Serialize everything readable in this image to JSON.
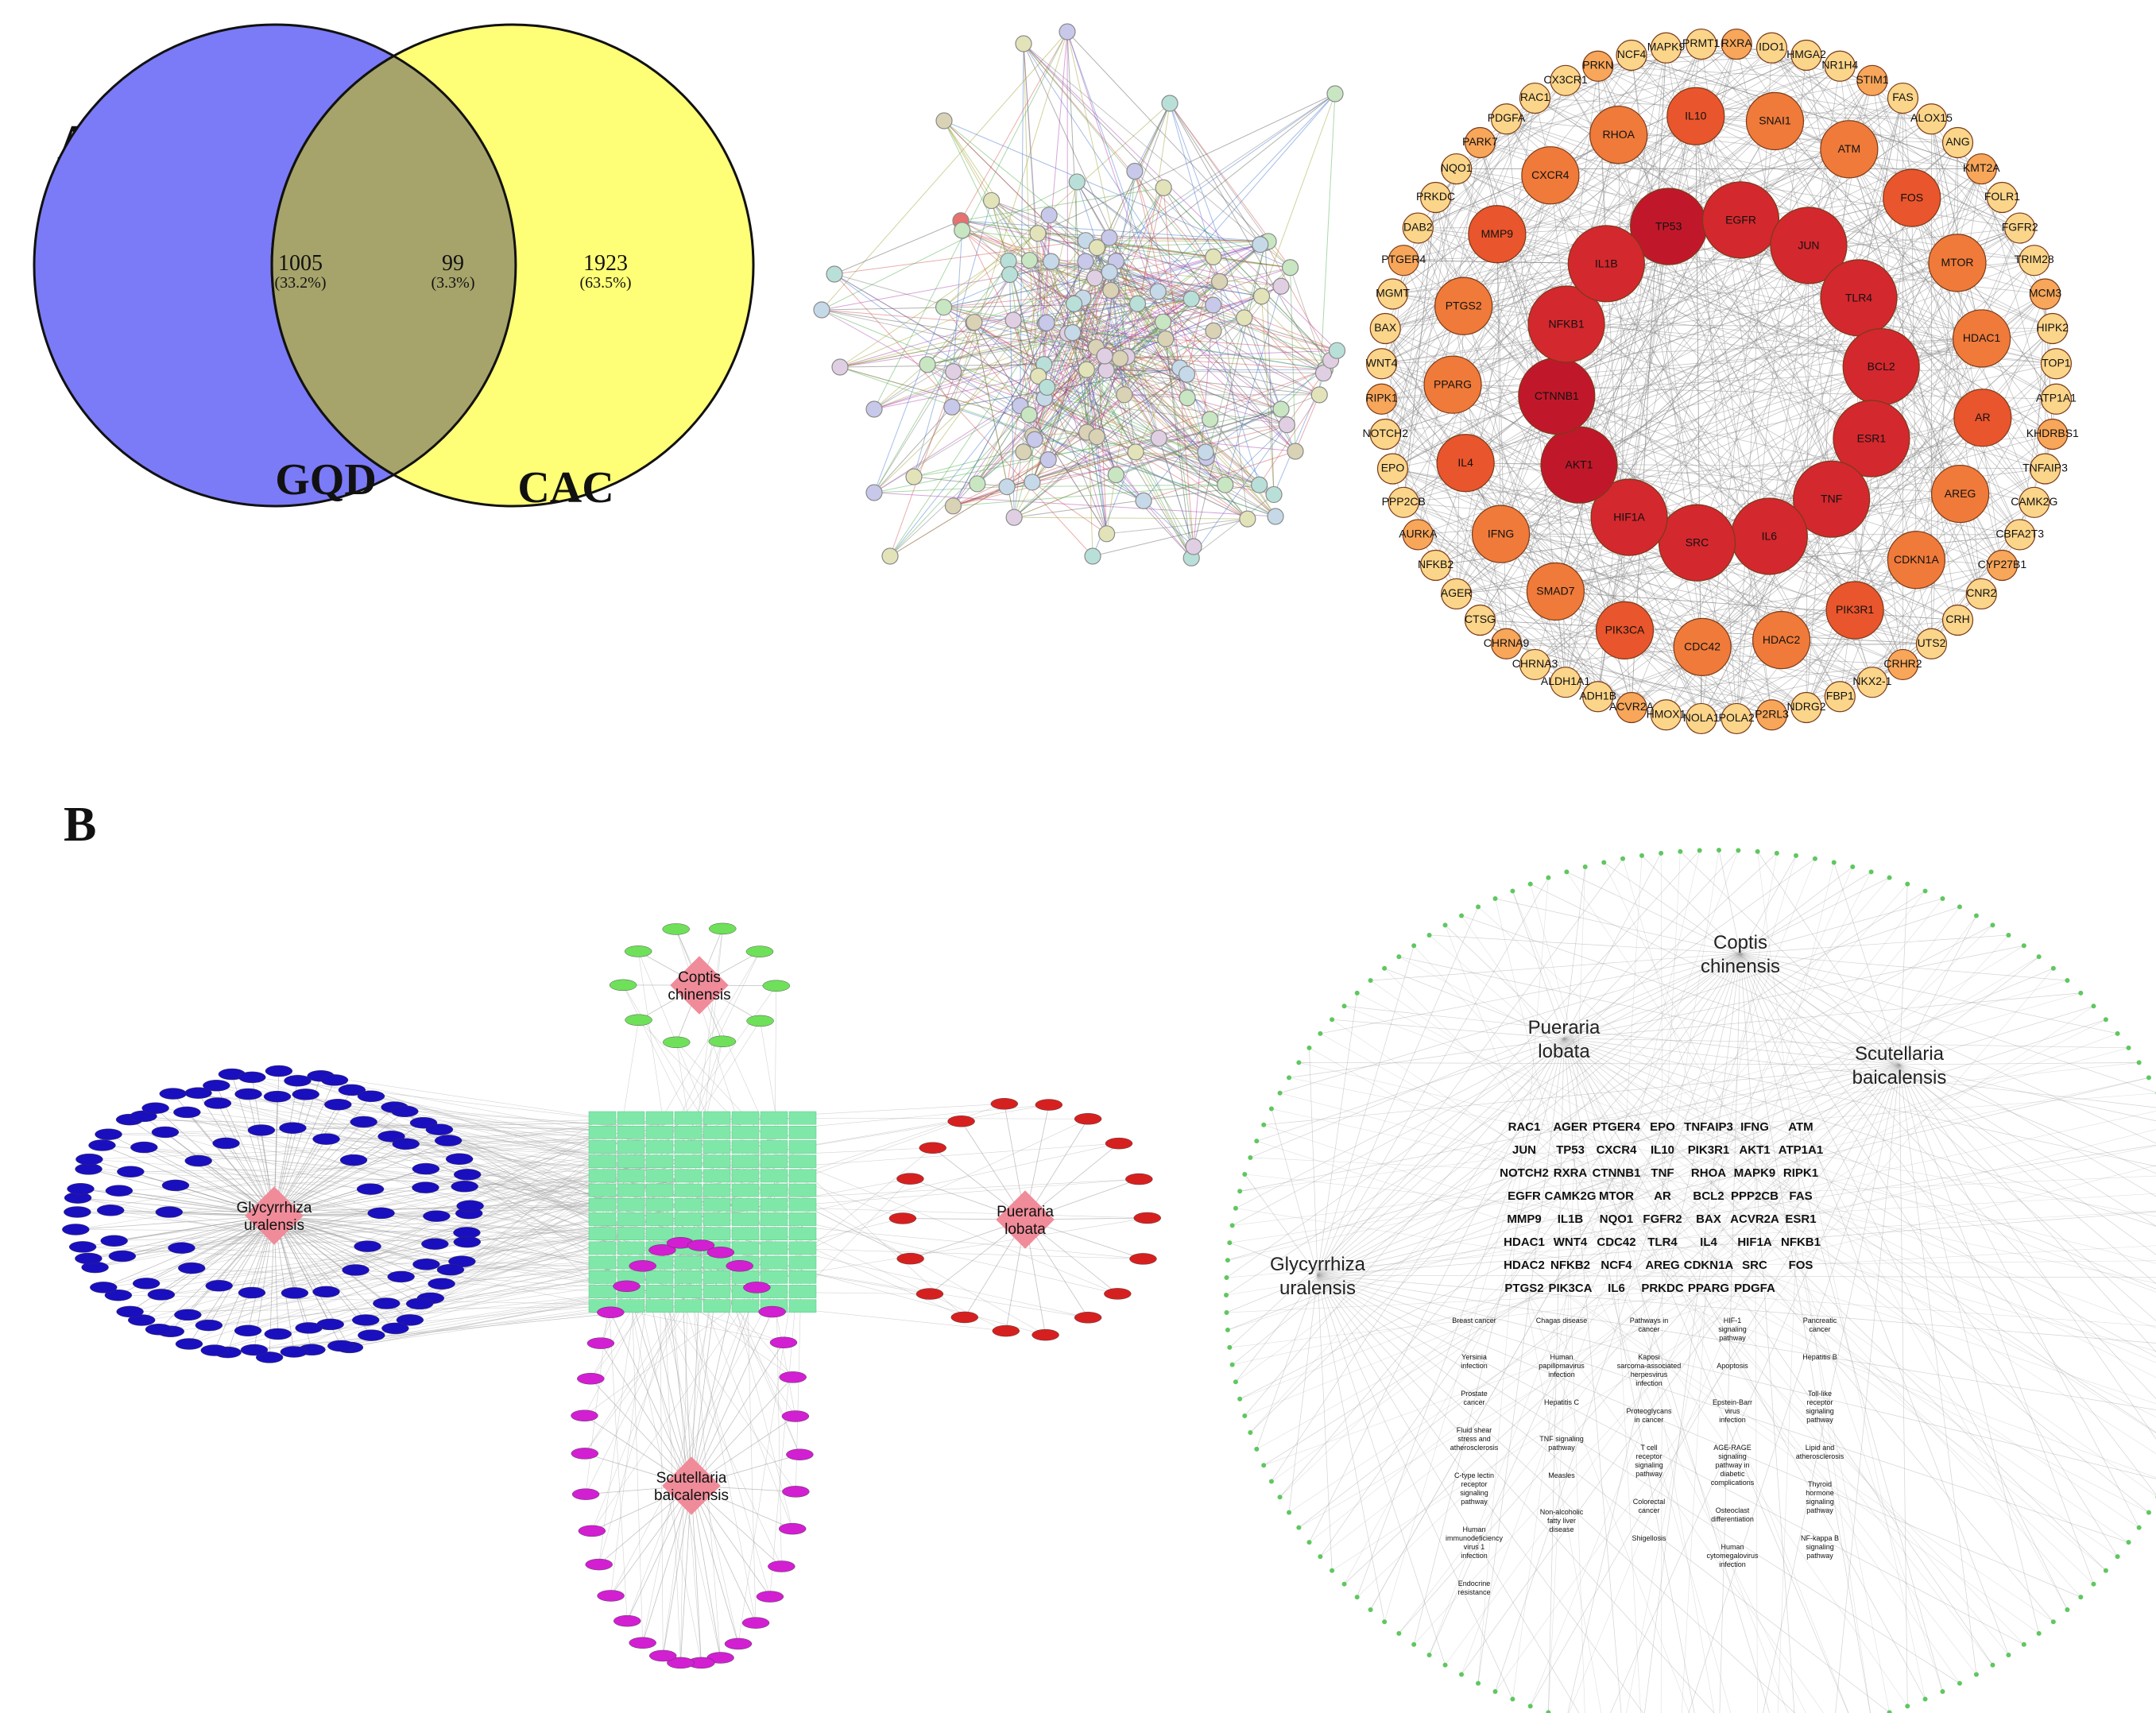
{
  "panels": {
    "a": "A",
    "b": "B"
  },
  "venn": {
    "left": {
      "label": "GQD",
      "count": "1005",
      "pct": "(33.2%)",
      "color": "#7b7bf7"
    },
    "middle": {
      "count": "99",
      "pct": "(3.3%)",
      "color": "#a6a46a"
    },
    "right": {
      "label": "CAC",
      "count": "1923",
      "pct": "(63.5%)",
      "color": "#ffff77"
    }
  },
  "ppi_core": {
    "inner": [
      "TP53",
      "EGFR",
      "JUN",
      "TLR4",
      "BCL2",
      "ESR1",
      "TNF",
      "IL6",
      "SRC",
      "HIF1A",
      "AKT1",
      "CTNNB1",
      "NFKB1",
      "IL1B"
    ],
    "middle": [
      "IL10",
      "SNAI1",
      "ATM",
      "FOS",
      "MTOR",
      "HDAC1",
      "AR",
      "AREG",
      "CDKN1A",
      "PIK3R1",
      "HDAC2",
      "CDC42",
      "PIK3CA",
      "SMAD7",
      "IFNG",
      "IL4",
      "PPARG",
      "PTGS2",
      "MMP9",
      "CXCR4",
      "RHOA"
    ],
    "outer": [
      "RXRA",
      "IDO1",
      "HMGA2",
      "NR1H4",
      "STIM1",
      "FAS",
      "ALOX15",
      "ANG",
      "KMT2A",
      "FOLR1",
      "FGFR2",
      "TRIM28",
      "MCM3",
      "HIPK2",
      "TOP1",
      "ATP1A1",
      "KHDRBS1",
      "TNFAIP3",
      "CAMK2G",
      "CBFA2T3",
      "CYP27B1",
      "CNR2",
      "CRH",
      "UTS2",
      "CRHR2",
      "NKX2-1",
      "FBP1",
      "NDRG2",
      "P2RL3",
      "POLA2",
      "NOLA1",
      "HMOX1",
      "ACVR2A",
      "ADH1B",
      "ALDH1A1",
      "CHRNA3",
      "CHRNA9",
      "CTSG",
      "AGER",
      "NFKB2",
      "AURKA",
      "PPP2CB",
      "EPO",
      "NOTCH2",
      "RIPK1",
      "WNT4",
      "BAX",
      "MGMT",
      "PTGER4",
      "DAB2",
      "PRKDC",
      "NQO1",
      "PARK7",
      "PDGFA",
      "RAC1",
      "CX3CR1",
      "PRKN",
      "NCF4",
      "MAPK9",
      "PRMT1"
    ],
    "colors": {
      "inner": "#c0182a",
      "middle": "#e9552c",
      "outer_near": "#f7a65a",
      "outer": "#fbd58a"
    }
  },
  "herb_network": {
    "herbs": [
      "Glycyrrhiza uralensis",
      "Coptis chinensis",
      "Pueraria lobata",
      "Scutellaria baicalensis"
    ],
    "colors": {
      "glycyrrhiza": "#1a0fbf",
      "coptis": "#6fe05a",
      "pueraria": "#d62020",
      "scutellaria": "#d21fd2",
      "hub": "#f08c9a",
      "target": "#7fe8a8"
    }
  },
  "herb_pathway": {
    "herbs": [
      "Coptis chinensis",
      "Pueraria lobata",
      "Scutellaria baicalensis",
      "Glycyrrhiza uralensis"
    ],
    "genes": [
      [
        "RAC1",
        "AGER",
        "PTGER4",
        "EPO",
        "TNFAIP3",
        "IFNG",
        "ATM"
      ],
      [
        "JUN",
        "TP53",
        "CXCR4",
        "IL10",
        "PIK3R1",
        "AKT1",
        "ATP1A1"
      ],
      [
        "NOTCH2",
        "RXRA",
        "CTNNB1",
        "TNF",
        "RHOA",
        "MAPK9",
        "RIPK1"
      ],
      [
        "EGFR",
        "CAMK2G",
        "MTOR",
        "AR",
        "BCL2",
        "PPP2CB",
        "FAS"
      ],
      [
        "MMP9",
        "IL1B",
        "NQO1",
        "FGFR2",
        "BAX",
        "ACVR2A",
        "ESR1"
      ],
      [
        "HDAC1",
        "WNT4",
        "CDC42",
        "TLR4",
        "IL4",
        "HIF1A",
        "NFKB1"
      ],
      [
        "HDAC2",
        "NFKB2",
        "NCF4",
        "AREG",
        "CDKN1A",
        "SRC",
        "FOS"
      ],
      [
        "PTGS2",
        "PIK3CA",
        "IL6",
        "PRKDC",
        "PPARG",
        "PDGFA"
      ]
    ],
    "pathways": [
      [
        "Breast cancer",
        "Yersinia infection",
        "Prostate cancer",
        "Fluid shear stress and atherosclerosis",
        "C-type lectin receptor signaling pathway",
        "Human immunodeficiency virus 1 infection",
        "Endocrine resistance"
      ],
      [
        "Chagas disease",
        "Human papillomavirus infection",
        "Hepatitis C",
        "TNF signaling pathway",
        "Measles",
        "Non-alcoholic fatty liver disease"
      ],
      [
        "Pathways in cancer",
        "Kaposi sarcoma-associated herpesvirus infection",
        "Proteoglycans in cancer",
        "T cell receptor signaling pathway",
        "Colorectal cancer",
        "Shigellosis"
      ],
      [
        "HIF-1 signaling pathway",
        "Apoptosis",
        "Epstein-Barr virus infection",
        "AGE-RAGE signaling pathway in diabetic complications",
        "Osteoclast differentiation",
        "Human cytomegalovirus infection"
      ],
      [
        "Pancreatic cancer",
        "Hepatitis B",
        "Toll-like receptor signaling pathway",
        "Lipid and atherosclerosis",
        "Thyroid hormone signaling pathway",
        "NF-kappa B signaling pathway"
      ]
    ]
  }
}
